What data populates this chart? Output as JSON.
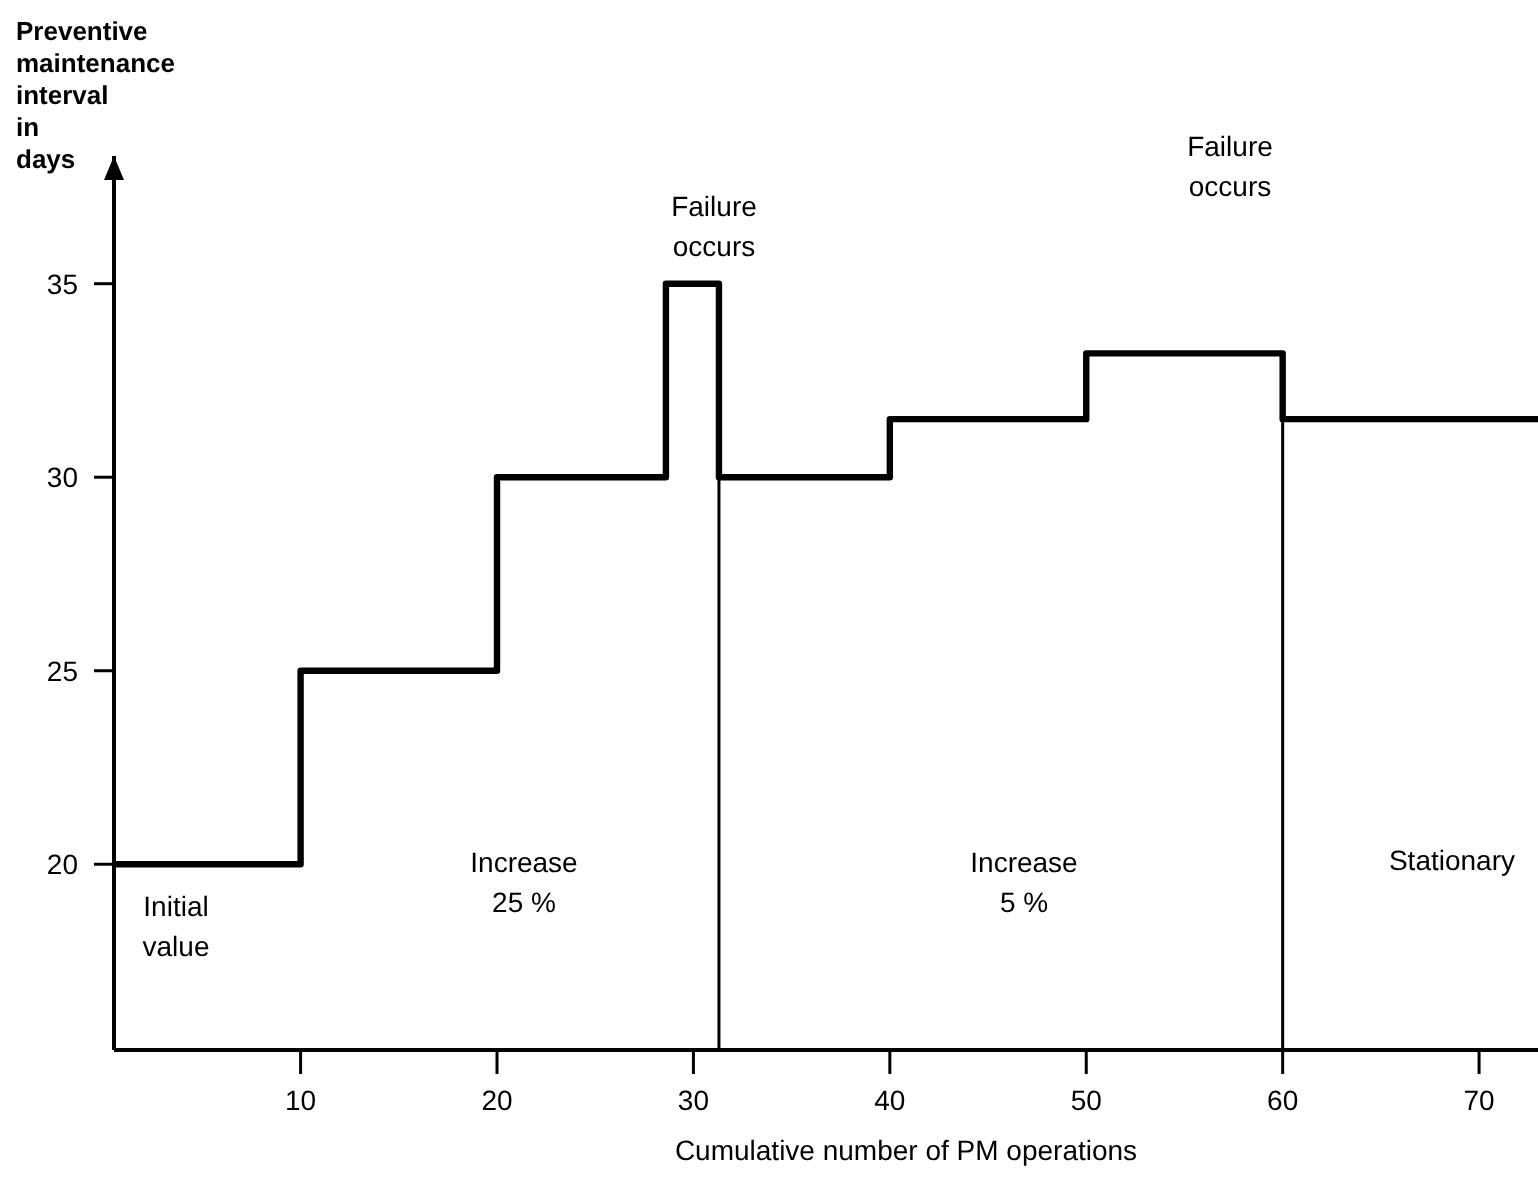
{
  "chart_data": {
    "type": "step",
    "xlabel": "Cumulative number of PM operations",
    "ylabel": "Preventive maintenance interval in days",
    "x": [
      0.5,
      10,
      20,
      28.6,
      31.3,
      40,
      50,
      60,
      73
    ],
    "series": [
      {
        "color": "#000000",
        "values": [
          20,
          25,
          30,
          35,
          30,
          31.5,
          33.2,
          31.5,
          31.5
        ]
      }
    ],
    "xlim": [
      0.5,
      73
    ],
    "xticks": [
      10,
      20,
      30,
      40,
      50,
      60,
      70
    ],
    "ylim": [
      15.2,
      38.3
    ],
    "yticks": [
      20,
      25,
      30,
      35
    ],
    "grid": false,
    "marker": "none",
    "line_style": "solid",
    "ref_lines": [
      {
        "axis": "x",
        "value": 31.3,
        "color": "#000000"
      },
      {
        "axis": "x",
        "value": 60,
        "color": "#000000"
      }
    ],
    "annotations": [
      "Initial value",
      "Increase 25 %",
      "Failure occurs",
      "Increase 5 %",
      "Failure occurs",
      "Stationary"
    ]
  }
}
